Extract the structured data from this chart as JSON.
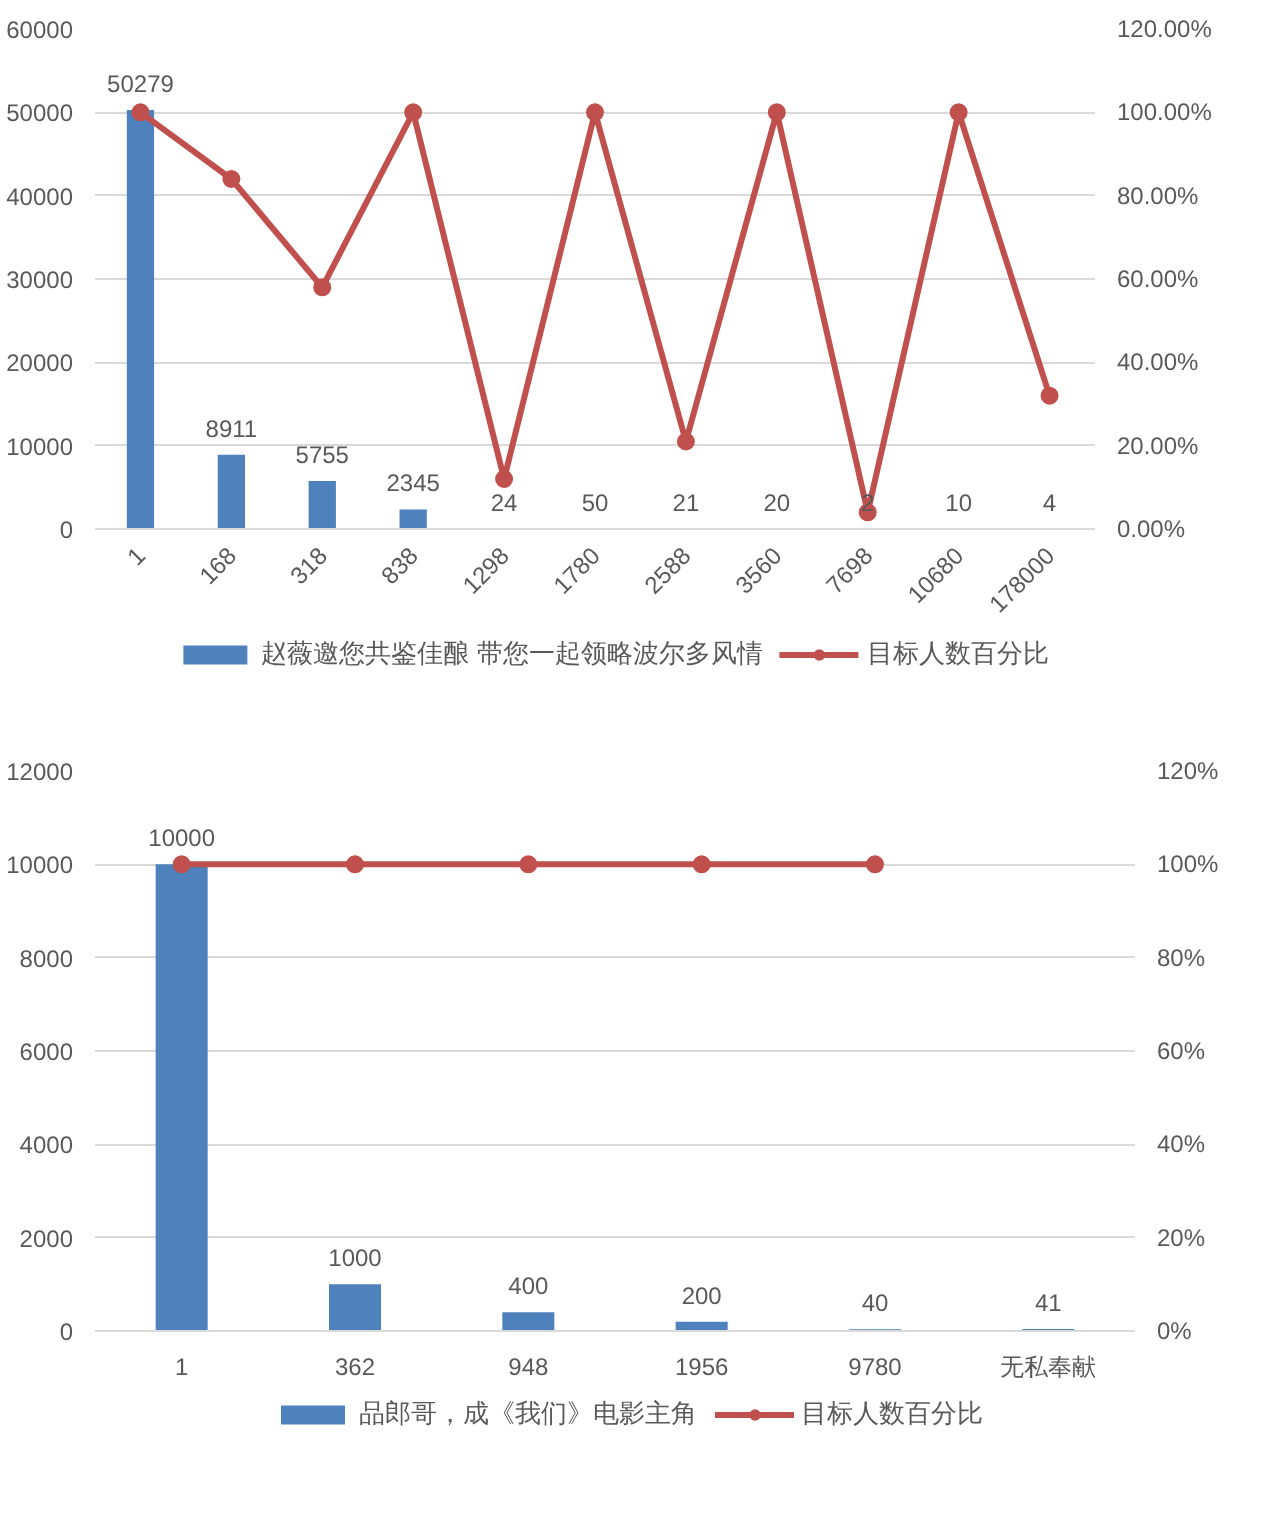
{
  "chart_data": [
    {
      "type": "bar",
      "categories": [
        "1",
        "168",
        "318",
        "838",
        "1298",
        "1780",
        "2588",
        "3560",
        "7698",
        "10680",
        "178000"
      ],
      "series": [
        {
          "name": "赵薇邀您共鉴佳酿 带您一起领略波尔多风情",
          "color": "#4f81bd",
          "values": [
            50279,
            8911,
            5755,
            2345,
            24,
            50,
            21,
            20,
            2,
            10,
            4
          ],
          "value_labels": [
            "50279",
            "8911",
            "5755",
            "2345",
            "24",
            "50",
            "21",
            "20",
            "2",
            "10",
            "4"
          ]
        },
        {
          "name": "目标人数百分比",
          "type": "line",
          "axis": "y2",
          "color": "#c0504d",
          "marker": "circle",
          "line_style": "solid",
          "values": [
            100,
            84,
            58,
            100,
            12,
            100,
            21,
            100,
            4,
            100,
            32
          ]
        }
      ],
      "ylim": [
        0,
        60000
      ],
      "yticks": [
        0,
        10000,
        20000,
        30000,
        40000,
        50000,
        60000
      ],
      "y2lim": [
        0,
        120
      ],
      "y2ticks": [
        {
          "value": 0,
          "label": "0.00%"
        },
        {
          "value": 20,
          "label": "20.00%"
        },
        {
          "value": 40,
          "label": "40.00%"
        },
        {
          "value": 60,
          "label": "60.00%"
        },
        {
          "value": 80,
          "label": "80.00%"
        },
        {
          "value": 100,
          "label": "100.00%"
        },
        {
          "value": 120,
          "label": "120.00%"
        }
      ],
      "grid": "y",
      "legend": "bottom"
    },
    {
      "type": "bar",
      "categories": [
        "1",
        "362",
        "948",
        "1956",
        "9780",
        "无私奉献"
      ],
      "series": [
        {
          "name": "品郎哥，成《我们》电影主角",
          "color": "#4f81bd",
          "values": [
            10000,
            1000,
            400,
            200,
            40,
            41
          ],
          "value_labels": [
            "10000",
            "1000",
            "400",
            "200",
            "40",
            "41"
          ]
        },
        {
          "name": "目标人数百分比",
          "type": "line",
          "axis": "y2",
          "color": "#c0504d",
          "marker": "circle",
          "line_style": "solid",
          "values": [
            100,
            100,
            100,
            100,
            100,
            null
          ]
        }
      ],
      "ylim": [
        0,
        12000
      ],
      "yticks": [
        0,
        2000,
        4000,
        6000,
        8000,
        10000,
        12000
      ],
      "y2lim": [
        0,
        120
      ],
      "y2ticks": [
        {
          "value": 0,
          "label": "0%"
        },
        {
          "value": 20,
          "label": "20%"
        },
        {
          "value": 40,
          "label": "40%"
        },
        {
          "value": 60,
          "label": "60%"
        },
        {
          "value": 80,
          "label": "80%"
        },
        {
          "value": 100,
          "label": "100%"
        },
        {
          "value": 120,
          "label": "120%"
        }
      ],
      "grid": "y",
      "legend": "bottom"
    }
  ]
}
